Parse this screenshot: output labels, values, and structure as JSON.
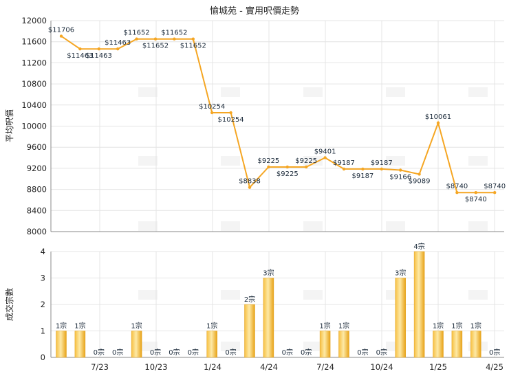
{
  "chart_data": [
    {
      "type": "line",
      "title": "愉城苑 - 實用呎價走勢",
      "ylabel": "平均呎價",
      "ylim": [
        8000,
        12000
      ],
      "yticks": [
        8000,
        8400,
        8800,
        9200,
        9600,
        10000,
        10400,
        10800,
        11200,
        11600,
        12000
      ],
      "x_tick_labels": [
        "7/23",
        "10/23",
        "1/24",
        "4/24",
        "7/24",
        "10/24",
        "1/25",
        "4/25"
      ],
      "series": [
        {
          "values": [
            11706,
            11463,
            11463,
            11463,
            11652,
            11652,
            11652,
            11652,
            10254,
            10254,
            8838,
            9225,
            9225,
            9225,
            9401,
            9187,
            9187,
            9187,
            9166,
            9089,
            10061,
            8740,
            8740,
            8740
          ],
          "labels": [
            "$11706",
            "$11463",
            "$11463",
            "$11463",
            "$11652",
            "$11652",
            "$11652",
            "$11652",
            "$10254",
            "$10254",
            "$8838",
            "$9225",
            "$9225",
            "$9225",
            "$9401",
            "$9187",
            "$9187",
            "$9187",
            "$9166",
            "$9089",
            "$10061",
            "$8740",
            "$8740",
            "$8740"
          ],
          "color": "#f5a623"
        }
      ],
      "grid": true
    },
    {
      "type": "bar",
      "ylabel": "成交宗數",
      "ylim": [
        0,
        4
      ],
      "yticks": [
        0,
        1,
        2,
        3,
        4
      ],
      "x_tick_labels": [
        "7/23",
        "10/23",
        "1/24",
        "4/24",
        "7/24",
        "10/24",
        "1/25",
        "4/25"
      ],
      "values": [
        1,
        1,
        0,
        0,
        1,
        0,
        0,
        0,
        1,
        0,
        2,
        3,
        0,
        0,
        1,
        1,
        0,
        0,
        3,
        4,
        1,
        1,
        1,
        0
      ],
      "labels": [
        "1宗",
        "1宗",
        "0宗",
        "0宗",
        "1宗",
        "0宗",
        "0宗",
        "0宗",
        "1宗",
        "0宗",
        "2宗",
        "3宗",
        "0宗",
        "0宗",
        "1宗",
        "1宗",
        "0宗",
        "0宗",
        "3宗",
        "4宗",
        "1宗",
        "1宗",
        "1宗",
        "0宗"
      ],
      "color": "#f5b21a",
      "grid": true
    }
  ]
}
